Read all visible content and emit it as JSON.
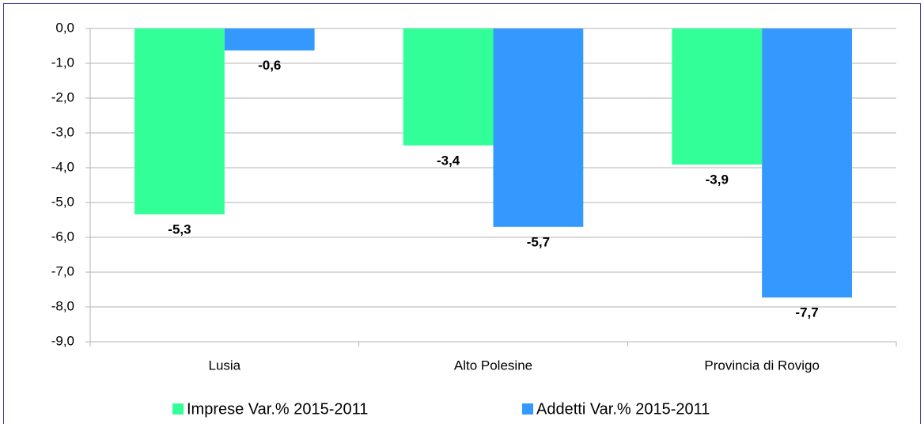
{
  "chart_data": {
    "type": "bar",
    "categories": [
      "Lusia",
      "Alto Polesine",
      "Provincia di Rovigo"
    ],
    "series": [
      {
        "name": "Imprese Var.% 2015-2011",
        "color": "#33ff99",
        "values": [
          -5.34,
          -3.36,
          -3.91
        ],
        "value_labels": [
          "-5,3",
          "-3,4",
          "-3,9"
        ]
      },
      {
        "name": "Addetti Var.% 2015-2011",
        "color": "#3399ff",
        "values": [
          -0.63,
          -5.7,
          -7.73
        ],
        "value_labels": [
          "-0,6",
          "-5,7",
          "-7,7"
        ]
      }
    ],
    "ylim": [
      -9,
      0
    ],
    "yticks": [
      {
        "value": 0,
        "label": "0,0"
      },
      {
        "value": -1,
        "label": "-1,0"
      },
      {
        "value": -2,
        "label": "-2,0"
      },
      {
        "value": -3,
        "label": "-3,0"
      },
      {
        "value": -4,
        "label": "-4,0"
      },
      {
        "value": -5,
        "label": "-5,0"
      },
      {
        "value": -6,
        "label": "-6,0"
      },
      {
        "value": -7,
        "label": "-7,0"
      },
      {
        "value": -8,
        "label": "-8,0"
      },
      {
        "value": -9,
        "label": "-9,0"
      }
    ],
    "grid": true,
    "legend": "bottom"
  }
}
